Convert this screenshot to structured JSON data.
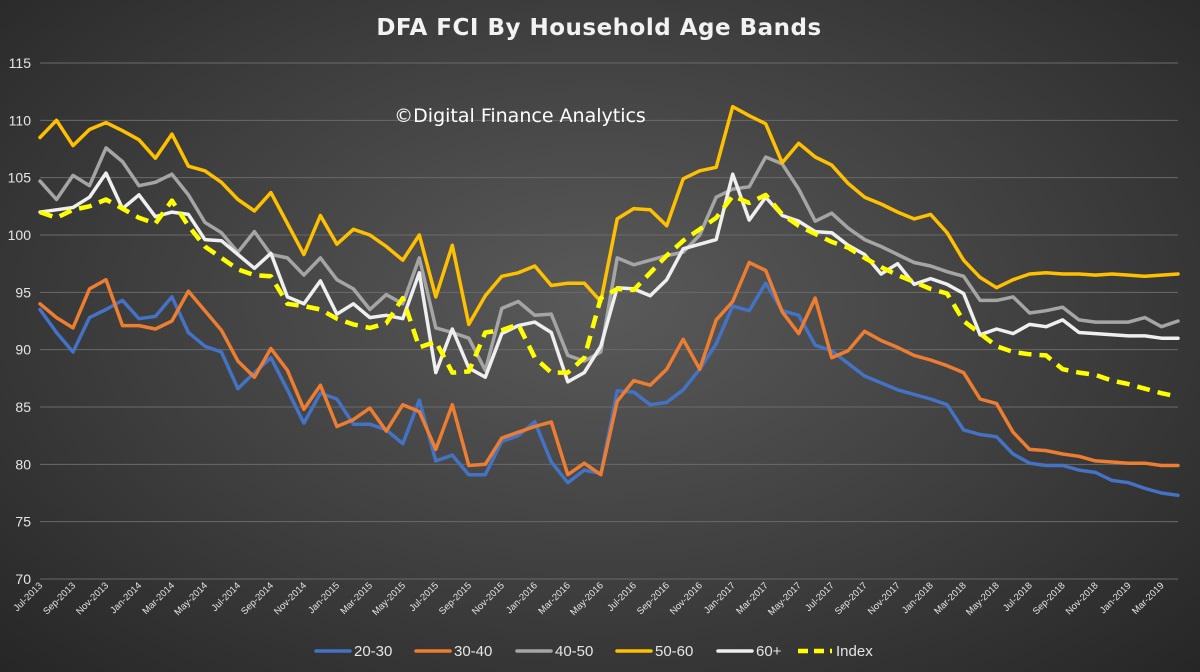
{
  "chart_data": {
    "type": "line",
    "title": "DFA FCI By Household Age Bands",
    "watermark": "©Digital Finance Analytics",
    "xlabel": "",
    "ylabel": "",
    "ylim": [
      70,
      115
    ],
    "yticks": [
      70,
      75,
      80,
      85,
      90,
      95,
      100,
      105,
      110,
      115
    ],
    "grid": true,
    "legend_position": "bottom",
    "x": [
      "Jul-2013",
      "Aug-2013",
      "Sep-2013",
      "Oct-2013",
      "Nov-2013",
      "Dec-2013",
      "Jan-2014",
      "Feb-2014",
      "Mar-2014",
      "Apr-2014",
      "May-2014",
      "Jun-2014",
      "Jul-2014",
      "Aug-2014",
      "Sep-2014",
      "Oct-2014",
      "Nov-2014",
      "Dec-2014",
      "Jan-2015",
      "Feb-2015",
      "Mar-2015",
      "Apr-2015",
      "May-2015",
      "Jun-2015",
      "Jul-2015",
      "Aug-2015",
      "Sep-2015",
      "Oct-2015",
      "Nov-2015",
      "Dec-2015",
      "Jan-2016",
      "Feb-2016",
      "Mar-2016",
      "Apr-2016",
      "May-2016",
      "Jun-2016",
      "Jul-2016",
      "Aug-2016",
      "Sep-2016",
      "Oct-2016",
      "Nov-2016",
      "Dec-2016",
      "Jan-2017",
      "Feb-2017",
      "Mar-2017",
      "Apr-2017",
      "May-2017",
      "Jun-2017",
      "Jul-2017",
      "Aug-2017",
      "Sep-2017",
      "Oct-2017",
      "Nov-2017",
      "Dec-2017",
      "Jan-2018",
      "Feb-2018",
      "Mar-2018",
      "Apr-2018",
      "May-2018",
      "Jun-2018",
      "Jul-2018",
      "Aug-2018",
      "Sep-2018",
      "Oct-2018",
      "Nov-2018",
      "Dec-2018",
      "Jan-2019",
      "Feb-2019",
      "Mar-2019",
      "Apr-2019"
    ],
    "x_tick_labels": [
      "Jul-2013",
      "Sep-2013",
      "Nov-2013",
      "Jan-2014",
      "Mar-2014",
      "May-2014",
      "Jul-2014",
      "Sep-2014",
      "Nov-2014",
      "Jan-2015",
      "Mar-2015",
      "May-2015",
      "Jul-2015",
      "Sep-2015",
      "Nov-2015",
      "Jan-2016",
      "Mar-2016",
      "May-2016",
      "Jul-2016",
      "Sep-2016",
      "Nov-2016",
      "Jan-2017",
      "Mar-2017",
      "May-2017",
      "Jul-2017",
      "Sep-2017",
      "Nov-2017",
      "Jan-2018",
      "Mar-2018",
      "May-2018",
      "Jul-2018",
      "Sep-2018",
      "Nov-2018",
      "Jan-2019",
      "Mar-2019"
    ],
    "series": [
      {
        "name": "20-30",
        "color": "#4472c4",
        "dashed": false,
        "values": [
          93.5,
          91.5,
          89.8,
          92.8,
          93.5,
          94.3,
          92.7,
          92.9,
          94.6,
          91.5,
          90.3,
          89.8,
          86.6,
          88.0,
          89.3,
          86.5,
          83.6,
          86.2,
          85.7,
          83.5,
          83.5,
          83.0,
          81.8,
          85.6,
          80.3,
          80.8,
          79.1,
          79.1,
          82.0,
          82.5,
          83.7,
          80.2,
          78.4,
          79.5,
          79.2,
          86.4,
          86.3,
          85.2,
          85.4,
          86.5,
          88.3,
          90.5,
          93.8,
          93.4,
          95.8,
          93.4,
          93.0,
          90.4,
          89.9,
          88.8,
          87.7,
          87.1,
          86.5,
          86.1,
          85.7,
          85.2,
          83.0,
          82.6,
          82.4,
          80.9,
          80.1,
          79.9,
          79.9,
          79.5,
          79.3,
          78.6,
          78.4,
          77.9,
          77.5,
          77.3
        ]
      },
      {
        "name": "30-40",
        "color": "#ed7d31",
        "dashed": false,
        "values": [
          94.0,
          92.8,
          91.9,
          95.3,
          96.1,
          92.1,
          92.1,
          91.8,
          92.5,
          95.1,
          93.4,
          91.7,
          89.0,
          87.6,
          90.1,
          88.2,
          84.8,
          86.9,
          83.3,
          83.9,
          84.9,
          82.9,
          85.2,
          84.6,
          81.3,
          85.2,
          79.9,
          80.0,
          82.3,
          82.8,
          83.3,
          83.7,
          79.1,
          80.1,
          79.1,
          85.5,
          87.3,
          86.9,
          88.3,
          90.9,
          88.3,
          92.6,
          94.2,
          97.6,
          96.9,
          93.3,
          91.4,
          94.5,
          89.3,
          89.9,
          91.6,
          90.8,
          90.2,
          89.5,
          89.1,
          88.6,
          88.0,
          85.7,
          85.3,
          82.8,
          81.3,
          81.2,
          80.9,
          80.7,
          80.3,
          80.2,
          80.1,
          80.1,
          79.9,
          79.9
        ]
      },
      {
        "name": "40-50",
        "color": "#a5a5a5",
        "dashed": false,
        "values": [
          104.7,
          103.1,
          105.2,
          104.3,
          107.6,
          106.4,
          104.3,
          104.6,
          105.3,
          103.5,
          101.1,
          100.2,
          98.5,
          100.3,
          98.3,
          98.0,
          96.5,
          98.0,
          96.1,
          95.3,
          93.5,
          94.8,
          94.0,
          98.0,
          91.9,
          91.5,
          91.0,
          88.2,
          93.6,
          94.2,
          93.0,
          93.1,
          89.5,
          89.0,
          89.8,
          98.0,
          97.4,
          97.8,
          98.2,
          98.5,
          100.0,
          103.3,
          104.0,
          104.2,
          106.8,
          106.2,
          104.0,
          101.2,
          101.9,
          100.6,
          99.6,
          99.0,
          98.3,
          97.6,
          97.3,
          96.8,
          96.4,
          94.3,
          94.3,
          94.6,
          93.2,
          93.4,
          93.7,
          92.6,
          92.4,
          92.4,
          92.4,
          92.8,
          92.0,
          92.5
        ]
      },
      {
        "name": "50-60",
        "color": "#ffc000",
        "dashed": false,
        "values": [
          108.5,
          110.0,
          107.8,
          109.2,
          109.8,
          109.1,
          108.3,
          106.7,
          108.8,
          106.0,
          105.6,
          104.6,
          103.1,
          102.1,
          103.7,
          101.0,
          98.3,
          101.7,
          99.2,
          100.5,
          100.0,
          99.0,
          97.8,
          100.0,
          94.6,
          99.1,
          92.2,
          94.7,
          96.4,
          96.7,
          97.3,
          95.6,
          95.8,
          95.8,
          94.2,
          101.4,
          102.3,
          102.2,
          100.8,
          104.9,
          105.6,
          105.9,
          111.2,
          110.4,
          109.7,
          106.3,
          108.0,
          106.8,
          106.1,
          104.5,
          103.3,
          102.7,
          102.0,
          101.4,
          101.8,
          100.2,
          97.8,
          96.3,
          95.4,
          96.1,
          96.6,
          96.7,
          96.6,
          96.6,
          96.5,
          96.6,
          96.5,
          96.4,
          96.5,
          96.6
        ]
      },
      {
        "name": "60+",
        "color": "#efefef",
        "dashed": false,
        "values": [
          102.0,
          102.2,
          102.4,
          103.3,
          105.4,
          102.3,
          103.5,
          101.6,
          102.0,
          101.8,
          99.6,
          99.5,
          98.3,
          97.1,
          98.4,
          94.6,
          94.0,
          96.0,
          93.1,
          94.0,
          92.8,
          93.0,
          92.7,
          96.7,
          88.0,
          91.8,
          88.4,
          87.6,
          91.4,
          92.1,
          92.4,
          91.5,
          87.2,
          88.0,
          90.3,
          95.4,
          95.3,
          94.7,
          96.1,
          98.8,
          99.2,
          99.6,
          105.3,
          101.3,
          103.3,
          101.7,
          101.2,
          100.3,
          100.2,
          99.1,
          98.3,
          96.6,
          97.5,
          95.7,
          96.2,
          95.7,
          94.9,
          91.3,
          91.8,
          91.4,
          92.2,
          92.0,
          92.6,
          91.5,
          91.4,
          91.3,
          91.2,
          91.2,
          91.0,
          91.0
        ]
      },
      {
        "name": "Index",
        "color": "#ffff00",
        "dashed": true,
        "values": [
          102.0,
          101.5,
          102.2,
          102.5,
          103.1,
          102.3,
          101.5,
          101.0,
          103.0,
          100.8,
          99.0,
          98.0,
          97.0,
          96.5,
          96.4,
          94.0,
          93.8,
          93.5,
          92.7,
          92.2,
          91.9,
          92.3,
          94.5,
          90.2,
          90.7,
          88.0,
          88.1,
          91.5,
          91.7,
          92.2,
          89.3,
          88.0,
          88.0,
          89.3,
          94.5,
          95.3,
          95.2,
          96.7,
          98.2,
          99.5,
          100.5,
          101.5,
          103.4,
          102.8,
          103.5,
          101.8,
          100.8,
          100.1,
          99.4,
          98.9,
          98.0,
          97.2,
          96.5,
          95.9,
          95.3,
          94.9,
          92.5,
          91.4,
          90.3,
          89.8,
          89.6,
          89.5,
          88.3,
          88.0,
          87.8,
          87.3,
          87.0,
          86.6,
          86.2,
          85.9
        ]
      }
    ]
  }
}
